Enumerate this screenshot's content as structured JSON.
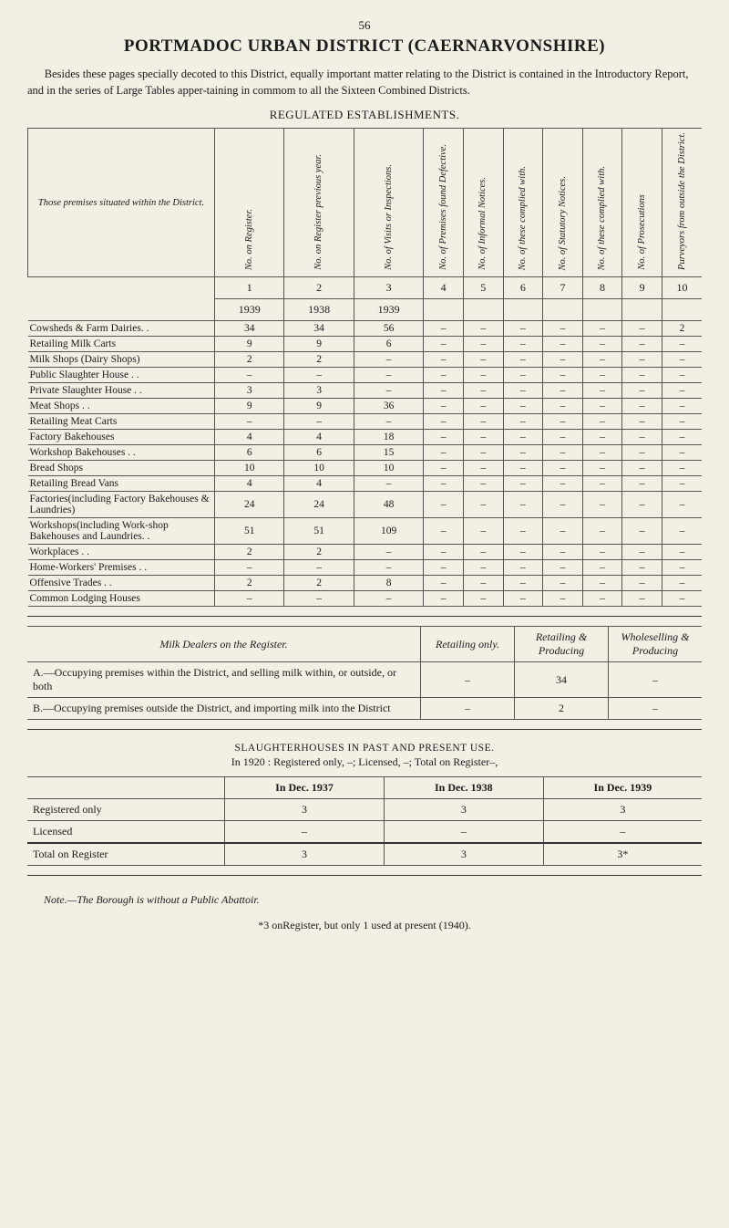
{
  "pageNumber": "56",
  "title": "PORTMADOC URBAN DISTRICT (CAERNARVONSHIRE)",
  "intro": "Besides these pages specially decoted to this District, equally important matter relating to the District is contained in the Introductory Report, and in the series of Large Tables apper-taining in commom to all the Sixteen Combined Districts.",
  "sectionTitle": "REGULATED ESTABLISHMENTS.",
  "establishments": {
    "rowHeaderLabel": "Those premises situated within the District.",
    "columns": [
      "No. on Register.",
      "No. on Register previous year.",
      "No. of Visits or Inspections.",
      "No. of Premises found Defective.",
      "No. of Informal Notices.",
      "No. of these complied with.",
      "No. of Statutory Notices.",
      "No. of these complied with.",
      "No. of Prosecutions",
      "Purveyors from outside the District."
    ],
    "numRow": [
      "1",
      "2",
      "3",
      "4",
      "5",
      "6",
      "7",
      "8",
      "9",
      "10"
    ],
    "yearRow": [
      "1939",
      "1938",
      "1939",
      "",
      "",
      "",
      "",
      "",
      "",
      ""
    ],
    "rows": [
      {
        "label": "Cowsheds & Farm Dairies. .",
        "vals": [
          "34",
          "34",
          "56",
          "–",
          "–",
          "–",
          "–",
          "–",
          "–",
          "2"
        ]
      },
      {
        "label": "Retailing Milk Carts",
        "vals": [
          "9",
          "9",
          "6",
          "–",
          "–",
          "–",
          "–",
          "–",
          "–",
          "–"
        ]
      },
      {
        "label": "Milk Shops (Dairy Shops)",
        "vals": [
          "2",
          "2",
          "–",
          "–",
          "–",
          "–",
          "–",
          "–",
          "–",
          "–"
        ]
      },
      {
        "label": "Public Slaughter House  . .",
        "vals": [
          "–",
          "–",
          "–",
          "–",
          "–",
          "–",
          "–",
          "–",
          "–",
          "–"
        ]
      },
      {
        "label": "Private Slaughter House . .",
        "vals": [
          "3",
          "3",
          "–",
          "–",
          "–",
          "–",
          "–",
          "–",
          "–",
          "–"
        ]
      },
      {
        "label": "Meat Shops . .",
        "vals": [
          "9",
          "9",
          "36",
          "–",
          "–",
          "–",
          "–",
          "–",
          "–",
          "–"
        ]
      },
      {
        "label": "Retailing Meat Carts",
        "vals": [
          "–",
          "–",
          "–",
          "–",
          "–",
          "–",
          "–",
          "–",
          "–",
          "–"
        ]
      },
      {
        "label": "Factory Bakehouses",
        "vals": [
          "4",
          "4",
          "18",
          "–",
          "–",
          "–",
          "–",
          "–",
          "–",
          "–"
        ]
      },
      {
        "label": "Workshop Bakehouses  . .",
        "vals": [
          "6",
          "6",
          "15",
          "–",
          "–",
          "–",
          "–",
          "–",
          "–",
          "–"
        ]
      },
      {
        "label": "Bread Shops",
        "vals": [
          "10",
          "10",
          "10",
          "–",
          "–",
          "–",
          "–",
          "–",
          "–",
          "–"
        ]
      },
      {
        "label": "Retailing Bread Vans",
        "vals": [
          "4",
          "4",
          "–",
          "–",
          "–",
          "–",
          "–",
          "–",
          "–",
          "–"
        ]
      },
      {
        "label": "Factories(including Factory Bakehouses & Laundries)",
        "vals": [
          "24",
          "24",
          "48",
          "–",
          "–",
          "–",
          "–",
          "–",
          "–",
          "–"
        ]
      },
      {
        "label": "Workshops(including Work-shop Bakehouses and Laundries. .",
        "vals": [
          "51",
          "51",
          "109",
          "–",
          "–",
          "–",
          "–",
          "–",
          "–",
          "–"
        ]
      },
      {
        "label": "Workplaces . .",
        "vals": [
          "2",
          "2",
          "–",
          "–",
          "–",
          "–",
          "–",
          "–",
          "–",
          "–"
        ]
      },
      {
        "label": "Home-Workers' Premises . .",
        "vals": [
          "–",
          "–",
          "–",
          "–",
          "–",
          "–",
          "–",
          "–",
          "–",
          "–"
        ]
      },
      {
        "label": "Offensive Trades  . .",
        "vals": [
          "2",
          "2",
          "8",
          "–",
          "–",
          "–",
          "–",
          "–",
          "–",
          "–"
        ]
      },
      {
        "label": "Common Lodging Houses",
        "vals": [
          "–",
          "–",
          "–",
          "–",
          "–",
          "–",
          "–",
          "–",
          "–",
          "–"
        ]
      }
    ]
  },
  "milkDealers": {
    "title": "Milk Dealers on the Register.",
    "headers": [
      "Retailing only.",
      "Retailing & Producing",
      "Wholeselling & Producing"
    ],
    "rows": [
      {
        "label": "A.—Occupying premises within the District, and selling milk within, or outside, or both",
        "vals": [
          "–",
          "34",
          "–"
        ]
      },
      {
        "label": "B.—Occupying premises outside the District, and importing milk into the District",
        "vals": [
          "–",
          "2",
          "–"
        ]
      }
    ]
  },
  "slaughterhouses": {
    "title": "SLAUGHTERHOUSES  IN  PAST  AND  PRESENT  USE.",
    "subtitle": "In 1920 : Registered only, –; Licensed, –; Total on Register–,",
    "headers": [
      "In Dec. 1937",
      "In Dec. 1938",
      "In Dec. 1939"
    ],
    "rows": [
      {
        "label": "Registered only",
        "vals": [
          "3",
          "3",
          "3"
        ]
      },
      {
        "label": "Licensed",
        "vals": [
          "–",
          "–",
          "–"
        ]
      }
    ],
    "total": {
      "label": "Total on Register",
      "vals": [
        "3",
        "3",
        "3*"
      ]
    }
  },
  "footnote1": "Note.—The Borough is without a Public Abattoir.",
  "footnote2": "*3 onRegister, but only 1 used at present (1940)."
}
